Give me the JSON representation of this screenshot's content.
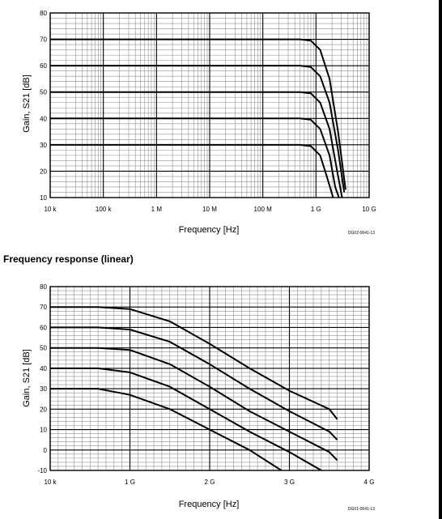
{
  "section_heading": "Frequency response (linear)",
  "chart_data": [
    {
      "type": "line",
      "xscale": "log",
      "xlabel": "Frequency [Hz]",
      "ylabel": "Gain, S21 [dB]",
      "xlim": [
        10000,
        10000000000
      ],
      "ylim": [
        10,
        80
      ],
      "xticks": [
        10000,
        100000,
        1000000,
        10000000,
        100000000,
        1000000000,
        10000000000
      ],
      "xtick_labels": [
        "10 k",
        "100 k",
        "1 M",
        "10 M",
        "100 M",
        "1 G",
        "10 G"
      ],
      "yticks": [
        10,
        20,
        30,
        40,
        50,
        60,
        70,
        80
      ],
      "ytick_labels": [
        "10",
        "20",
        "30",
        "40",
        "50",
        "60",
        "70",
        "80"
      ],
      "grid": true,
      "code": "DG02-0641-13",
      "series": [
        {
          "points": [
            [
              10000,
              70
            ],
            [
              500000000,
              70
            ],
            [
              800000000,
              69.5
            ],
            [
              1200000000,
              66
            ],
            [
              1800000000,
              55
            ],
            [
              2600000000,
              35
            ],
            [
              3600000000,
              13
            ]
          ]
        },
        {
          "points": [
            [
              10000,
              60
            ],
            [
              500000000,
              60
            ],
            [
              800000000,
              59.5
            ],
            [
              1200000000,
              56
            ],
            [
              1800000000,
              46
            ],
            [
              2600000000,
              28
            ],
            [
              3400000000,
              12
            ]
          ]
        },
        {
          "points": [
            [
              10000,
              50
            ],
            [
              500000000,
              50
            ],
            [
              800000000,
              49.5
            ],
            [
              1200000000,
              46
            ],
            [
              1800000000,
              36
            ],
            [
              2500000000,
              20
            ],
            [
              3100000000,
              10
            ]
          ]
        },
        {
          "points": [
            [
              10000,
              40
            ],
            [
              500000000,
              40
            ],
            [
              800000000,
              39.5
            ],
            [
              1200000000,
              36
            ],
            [
              1800000000,
              26
            ],
            [
              2300000000,
              14
            ],
            [
              2700000000,
              10
            ]
          ]
        },
        {
          "points": [
            [
              10000,
              30
            ],
            [
              500000000,
              30
            ],
            [
              800000000,
              29.5
            ],
            [
              1200000000,
              26
            ],
            [
              1600000000,
              18
            ],
            [
              2100000000,
              10
            ]
          ]
        }
      ]
    },
    {
      "type": "line",
      "xscale": "linear",
      "xlabel": "Frequency [Hz]",
      "ylabel": "Gain, S21 [dB]",
      "xlim": [
        0,
        4000000000
      ],
      "ylim": [
        -10,
        80
      ],
      "xticks": [
        0,
        1000000000,
        2000000000,
        3000000000,
        4000000000
      ],
      "xtick_labels": [
        "10 k",
        "1 G",
        "2 G",
        "3 G",
        "4 G"
      ],
      "yticks": [
        -10,
        0,
        10,
        20,
        30,
        40,
        50,
        60,
        70,
        80
      ],
      "ytick_labels": [
        "-10",
        "0",
        "10",
        "20",
        "30",
        "40",
        "50",
        "60",
        "70",
        "80"
      ],
      "grid": true,
      "code": "DG01-0641-13",
      "series": [
        {
          "points": [
            [
              0,
              70
            ],
            [
              600000000,
              70
            ],
            [
              1000000000,
              69
            ],
            [
              1500000000,
              63
            ],
            [
              2000000000,
              52
            ],
            [
              2500000000,
              40
            ],
            [
              3000000000,
              29
            ],
            [
              3500000000,
              20
            ],
            [
              3600000000,
              15
            ]
          ]
        },
        {
          "points": [
            [
              0,
              60
            ],
            [
              600000000,
              60
            ],
            [
              1000000000,
              59
            ],
            [
              1500000000,
              53
            ],
            [
              2000000000,
              42
            ],
            [
              2500000000,
              30
            ],
            [
              3000000000,
              19
            ],
            [
              3500000000,
              9
            ],
            [
              3600000000,
              5
            ]
          ]
        },
        {
          "points": [
            [
              0,
              50
            ],
            [
              600000000,
              50
            ],
            [
              1000000000,
              49
            ],
            [
              1500000000,
              42
            ],
            [
              2000000000,
              31
            ],
            [
              2500000000,
              19
            ],
            [
              3000000000,
              9
            ],
            [
              3500000000,
              -1
            ],
            [
              3600000000,
              -5
            ]
          ]
        },
        {
          "points": [
            [
              0,
              40
            ],
            [
              600000000,
              40
            ],
            [
              1000000000,
              38
            ],
            [
              1500000000,
              31
            ],
            [
              2000000000,
              20
            ],
            [
              2500000000,
              9
            ],
            [
              3000000000,
              -1
            ],
            [
              3400000000,
              -10
            ]
          ]
        },
        {
          "points": [
            [
              0,
              30
            ],
            [
              600000000,
              30
            ],
            [
              1000000000,
              27
            ],
            [
              1500000000,
              20
            ],
            [
              2000000000,
              10
            ],
            [
              2500000000,
              0
            ],
            [
              2900000000,
              -10
            ]
          ]
        }
      ]
    }
  ]
}
